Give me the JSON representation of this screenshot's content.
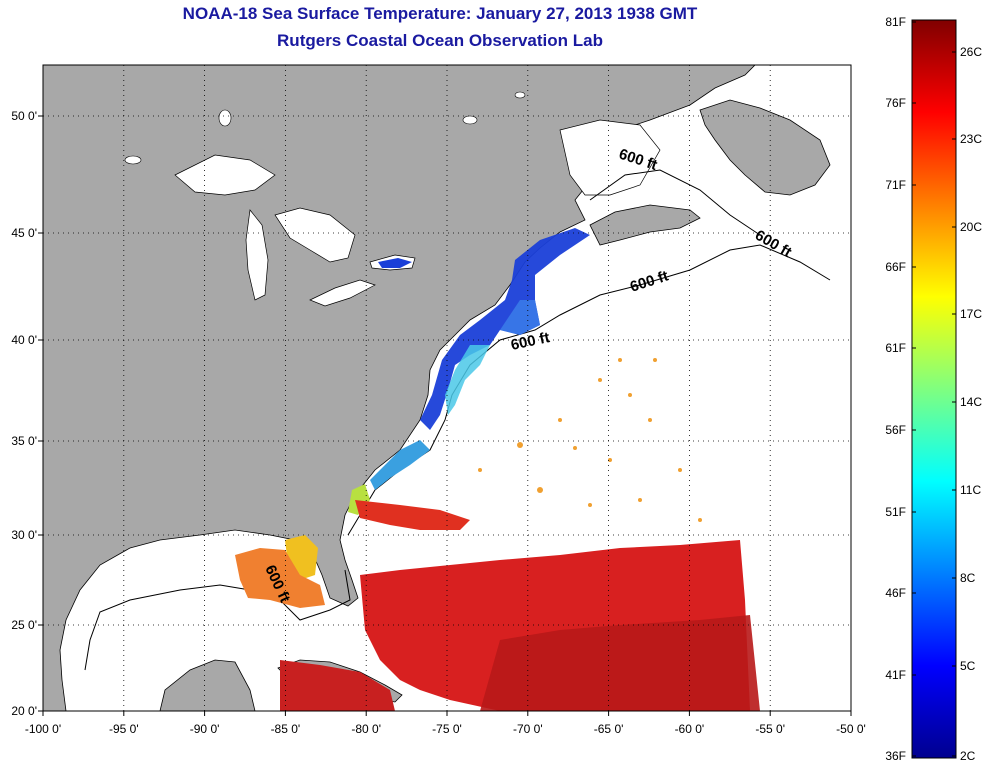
{
  "header": {
    "title": "NOAA-18 Sea Surface Temperature:  January 27, 2013 1938 GMT",
    "subtitle": "Rutgers Coastal Ocean Observation Lab"
  },
  "map": {
    "lon_ticks": [
      "-100 0'",
      "-95 0'",
      "-90 0'",
      "-85 0'",
      "-80 0'",
      "-75 0'",
      "-70 0'",
      "-65 0'",
      "-60 0'",
      "-55 0'",
      "-50 0'"
    ],
    "lat_ticks": [
      "20 0'",
      "25 0'",
      "30 0'",
      "35 0'",
      "40 0'",
      "45 0'",
      "50 0'"
    ],
    "depth_contour_labels": [
      "600 ft",
      "600 ft",
      "600 ft",
      "600 ft",
      "600 ft"
    ],
    "colors": {
      "land": "#a8a8a8",
      "ocean": "#ffffff",
      "coast": "#000000",
      "title": "#1a1aa0"
    }
  },
  "colorbar": {
    "fahrenheit_labels": [
      "81F",
      "76F",
      "71F",
      "66F",
      "61F",
      "56F",
      "51F",
      "46F",
      "41F",
      "36F"
    ],
    "celsius_labels": [
      "26C",
      "23C",
      "20C",
      "17C",
      "14C",
      "11C",
      "8C",
      "5C",
      "2C"
    ],
    "colormap": "jet"
  }
}
